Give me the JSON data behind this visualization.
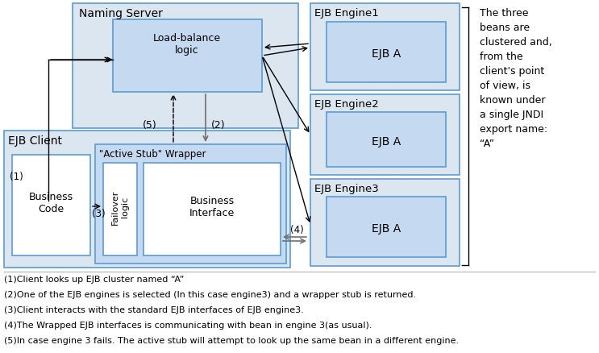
{
  "bg_color": "#ffffff",
  "fill_outer": "#dce6f1",
  "fill_inner": "#c5d9f1",
  "fill_white": "#ffffff",
  "edge_color": "#5b9bd5",
  "text_color": "#000000",
  "annotation_text": "The three\nbeans are\nclustered and,\nfrom the\nclient's point\nof view, is\nknown under\na single JNDI\nexport name:\n“A”",
  "footnotes": [
    "(1)Client looks up EJB cluster named “A”",
    "(2)One of the EJB engines is selected (In this case engine3) and a wrapper stub is returned.",
    "(3)Client interacts with the standard EJB interfaces of EJB engine3.",
    "(4)The Wrapped EJB interfaces is communicating with bean in engine 3(as usual).",
    "(5)In case engine 3 fails. The active stub will attempt to look up the same bean in a different engine."
  ]
}
